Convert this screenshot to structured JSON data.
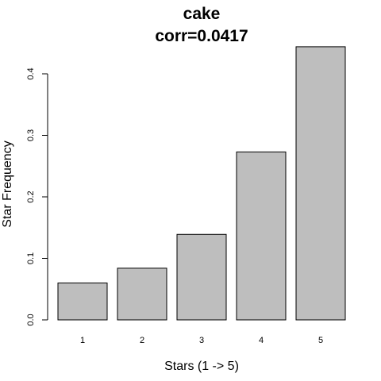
{
  "chart_data": {
    "type": "bar",
    "title": "cake",
    "subtitle": "corr=0.0417",
    "xlabel": "Stars (1 -> 5)",
    "ylabel": "Star Frequency",
    "categories": [
      "1",
      "2",
      "3",
      "4",
      "5"
    ],
    "values": [
      0.06,
      0.084,
      0.139,
      0.273,
      0.444
    ],
    "yticks": [
      "0.0",
      "0.1",
      "0.2",
      "0.3",
      "0.4"
    ],
    "ylim": [
      0,
      0.46
    ],
    "grid": false,
    "bar_color": "#bebebe",
    "bar_border": "#000000"
  }
}
